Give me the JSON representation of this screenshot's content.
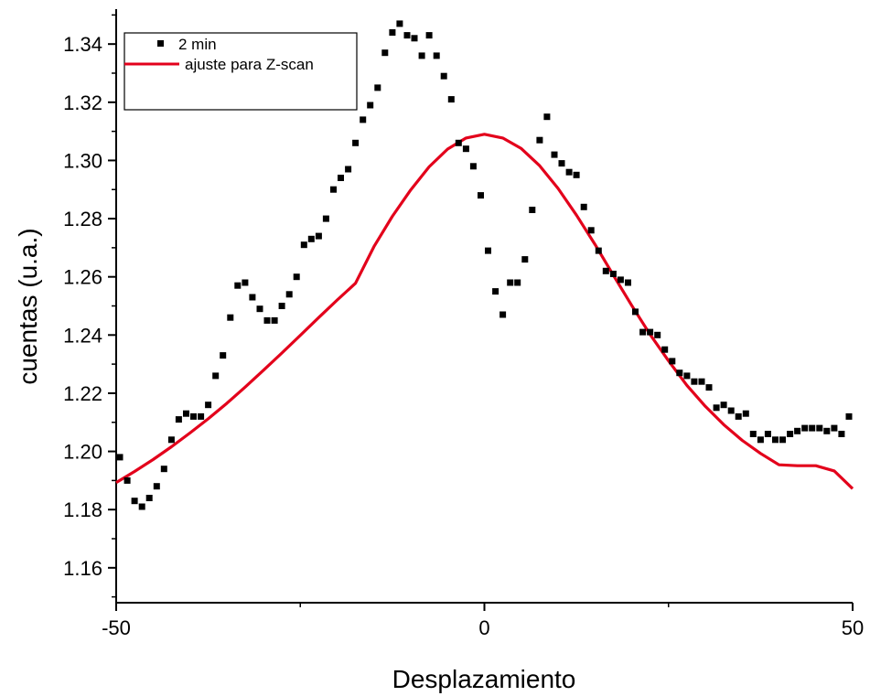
{
  "chart_data": {
    "type": "scatter",
    "title": "",
    "xlabel": "Desplazamiento",
    "ylabel": "cuentas (u.a.)",
    "xlim": [
      -50,
      50
    ],
    "ylim": [
      1.148,
      1.352
    ],
    "xticks": [
      -50,
      0,
      50
    ],
    "xtick_labels": [
      "-50",
      "0",
      "50"
    ],
    "yticks": [
      1.16,
      1.18,
      1.2,
      1.22,
      1.24,
      1.26,
      1.28,
      1.3,
      1.32,
      1.34
    ],
    "ytick_labels": [
      "1.16",
      "1.18",
      "1.20",
      "1.22",
      "1.24",
      "1.26",
      "1.28",
      "1.30",
      "1.32",
      "1.34"
    ],
    "grid": false,
    "legend_position": "top-left",
    "series": [
      {
        "name": "2 min",
        "kind": "scatter",
        "marker": "square",
        "color": "#000000",
        "x": [
          -49.5,
          -48.5,
          -47.5,
          -46.5,
          -45.5,
          -44.5,
          -43.5,
          -42.5,
          -41.5,
          -40.5,
          -39.5,
          -38.5,
          -37.5,
          -36.5,
          -35.5,
          -34.5,
          -33.5,
          -32.5,
          -31.5,
          -30.5,
          -29.5,
          -28.5,
          -27.5,
          -26.5,
          -25.5,
          -24.5,
          -23.5,
          -22.5,
          -21.5,
          -20.5,
          -19.5,
          -18.5,
          -17.5,
          -16.5,
          -15.5,
          -14.5,
          -13.5,
          -12.5,
          -11.5,
          -10.5,
          -9.5,
          -8.5,
          -7.5,
          -6.5,
          -5.5,
          -4.5,
          -3.5,
          -2.5,
          -1.5,
          -0.5,
          0.5,
          1.5,
          2.5,
          3.5,
          4.5,
          5.5,
          6.5,
          7.5,
          8.5,
          9.5,
          10.5,
          11.5,
          12.5,
          13.5,
          14.5,
          15.5,
          16.5,
          17.5,
          18.5,
          19.5,
          20.5,
          21.5,
          22.5,
          23.5,
          24.5,
          25.5,
          26.5,
          27.5,
          28.5,
          29.5,
          30.5,
          31.5,
          32.5,
          33.5,
          34.5,
          35.5,
          36.5,
          37.5,
          38.5,
          39.5,
          40.5,
          41.5,
          42.5,
          43.5,
          44.5,
          45.5,
          46.5,
          47.5,
          48.5,
          49.5
        ],
        "y": [
          1.198,
          1.19,
          1.183,
          1.181,
          1.184,
          1.188,
          1.194,
          1.204,
          1.211,
          1.213,
          1.212,
          1.212,
          1.216,
          1.226,
          1.233,
          1.246,
          1.257,
          1.258,
          1.253,
          1.249,
          1.245,
          1.245,
          1.25,
          1.254,
          1.26,
          1.271,
          1.273,
          1.274,
          1.28,
          1.29,
          1.294,
          1.297,
          1.306,
          1.314,
          1.319,
          1.325,
          1.337,
          1.344,
          1.347,
          1.343,
          1.342,
          1.336,
          1.343,
          1.336,
          1.329,
          1.321,
          1.306,
          1.304,
          1.298,
          1.288,
          1.269,
          1.255,
          1.247,
          1.258,
          1.258,
          1.266,
          1.283,
          1.307,
          1.315,
          1.302,
          1.299,
          1.296,
          1.295,
          1.284,
          1.276,
          1.269,
          1.262,
          1.261,
          1.259,
          1.258,
          1.248,
          1.241,
          1.241,
          1.24,
          1.235,
          1.231,
          1.227,
          1.226,
          1.224,
          1.224,
          1.222,
          1.215,
          1.216,
          1.214,
          1.212,
          1.213,
          1.206,
          1.204,
          1.206,
          1.204,
          1.204,
          1.206,
          1.207,
          1.208,
          1.208,
          1.208,
          1.207,
          1.208,
          1.206,
          1.212
        ]
      },
      {
        "name": "ajuste para Z-scan",
        "kind": "line",
        "color": "#e3001b",
        "x": [
          -50,
          -47.5,
          -45,
          -42.5,
          -40,
          -37.5,
          -35,
          -32.5,
          -30,
          -27.5,
          -25,
          -22.5,
          -20,
          -17.5,
          -15,
          -12.5,
          -10,
          -7.5,
          -5,
          -2.5,
          0,
          2.5,
          5,
          7.5,
          10,
          12.5,
          15,
          17.5,
          20,
          22.5,
          25,
          27.5,
          30,
          32.5,
          35,
          37.5,
          40,
          42.5,
          45,
          47.5,
          50
        ],
        "y": [
          1.1893,
          1.1931,
          1.1972,
          1.2016,
          1.2063,
          1.2112,
          1.2165,
          1.2221,
          1.2279,
          1.2338,
          1.2399,
          1.246,
          1.252,
          1.2578,
          1.2704,
          1.2808,
          1.2899,
          1.2978,
          1.3039,
          1.3077,
          1.309,
          1.3077,
          1.3041,
          1.2982,
          1.2904,
          1.2812,
          1.2712,
          1.2606,
          1.2502,
          1.2402,
          1.2311,
          1.2227,
          1.2155,
          1.2092,
          1.2038,
          1.1993,
          1.1954,
          1.1951,
          1.1951,
          1.1933,
          1.1872
        ]
      }
    ]
  }
}
